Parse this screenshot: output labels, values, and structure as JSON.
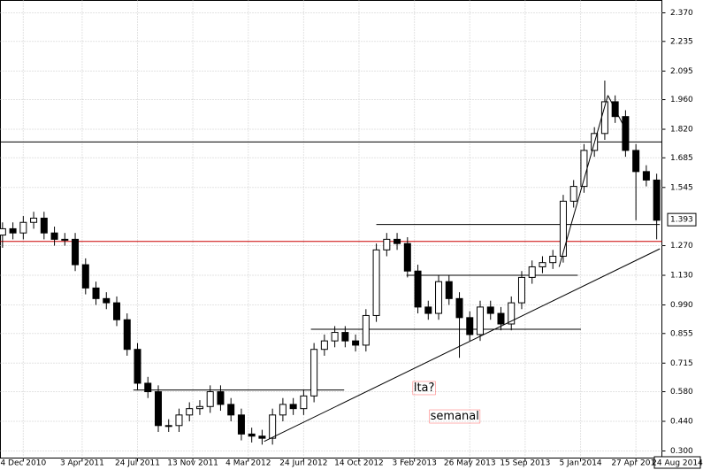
{
  "chart_data": {
    "type": "candlestick",
    "xlim": [
      -0.2,
      63.5
    ],
    "ylim": [
      0.2665,
      2.4286
    ],
    "grid": true,
    "up_color": "#ffffff",
    "down_color": "#000000",
    "xticks": [
      {
        "value": 2,
        "label": "4 Dec 2010"
      },
      {
        "value": 7.67,
        "label": "3 Apr 2011"
      },
      {
        "value": 13,
        "label": "24 Jul 2011"
      },
      {
        "value": 18.33,
        "label": "13 Nov 2011"
      },
      {
        "value": 23.67,
        "label": "4 Mar 2012"
      },
      {
        "value": 29,
        "label": "24 Jun 2012"
      },
      {
        "value": 34.33,
        "label": "14 Oct 2012"
      },
      {
        "value": 39.67,
        "label": "3 Feb 2013"
      },
      {
        "value": 45,
        "label": "26 May 2013"
      },
      {
        "value": 50.33,
        "label": "15 Sep 2013"
      },
      {
        "value": 55.67,
        "label": "5 Jan 2014"
      },
      {
        "value": 61,
        "label": "27 Apr 2014"
      }
    ],
    "last_date": "24 Aug 2014",
    "yticks": [
      {
        "value": 0.3,
        "label": "0.300"
      },
      {
        "value": 0.44,
        "label": "0.440"
      },
      {
        "value": 0.58,
        "label": "0.580"
      },
      {
        "value": 0.715,
        "label": "0.715"
      },
      {
        "value": 0.855,
        "label": "0.855"
      },
      {
        "value": 0.99,
        "label": "0.990"
      },
      {
        "value": 1.13,
        "label": "1.130"
      },
      {
        "value": 1.27,
        "label": "1.270"
      },
      {
        "value": 1.545,
        "label": "1.545"
      },
      {
        "value": 1.685,
        "label": "1.685"
      },
      {
        "value": 1.82,
        "label": "1.820"
      },
      {
        "value": 1.96,
        "label": "1.960"
      },
      {
        "value": 2.095,
        "label": "2.095"
      },
      {
        "value": 2.235,
        "label": "2.235"
      },
      {
        "value": 2.37,
        "label": "2.370"
      }
    ],
    "last_price": {
      "value": 1.393,
      "label": "1.393"
    },
    "open": [
      1.32,
      1.35,
      1.33,
      1.38,
      1.4,
      1.33,
      1.3,
      1.3,
      1.18,
      1.07,
      1.02,
      1.0,
      0.92,
      0.78,
      0.62,
      0.58,
      0.42,
      0.42,
      0.47,
      0.5,
      0.51,
      0.58,
      0.52,
      0.47,
      0.38,
      0.37,
      0.36,
      0.47,
      0.52,
      0.5,
      0.56,
      0.78,
      0.82,
      0.86,
      0.82,
      0.8,
      0.94,
      1.25,
      1.3,
      1.28,
      1.15,
      0.98,
      0.95,
      1.1,
      1.02,
      0.93,
      0.85,
      0.98,
      0.95,
      0.9,
      1.0,
      1.12,
      1.17,
      1.19,
      1.22,
      1.48,
      1.55,
      1.72,
      1.8,
      1.95,
      1.88,
      1.72,
      1.62,
      1.58
    ],
    "high": [
      1.38,
      1.38,
      1.41,
      1.43,
      1.43,
      1.36,
      1.33,
      1.33,
      1.21,
      1.1,
      1.05,
      1.03,
      0.95,
      0.81,
      0.65,
      0.61,
      0.45,
      0.5,
      0.53,
      0.54,
      0.61,
      0.61,
      0.55,
      0.5,
      0.41,
      0.4,
      0.5,
      0.55,
      0.55,
      0.59,
      0.81,
      0.85,
      0.89,
      0.89,
      0.85,
      0.97,
      1.28,
      1.33,
      1.33,
      1.31,
      1.18,
      1.01,
      1.13,
      1.13,
      1.05,
      0.96,
      1.01,
      1.01,
      0.98,
      1.03,
      1.15,
      1.2,
      1.22,
      1.25,
      1.51,
      1.58,
      1.75,
      1.83,
      2.05,
      1.98,
      1.91,
      1.75,
      1.65,
      1.61
    ],
    "low": [
      1.26,
      1.3,
      1.3,
      1.35,
      1.3,
      1.27,
      1.27,
      1.15,
      1.04,
      0.99,
      0.97,
      0.89,
      0.75,
      0.59,
      0.55,
      0.39,
      0.39,
      0.39,
      0.44,
      0.47,
      0.48,
      0.49,
      0.44,
      0.35,
      0.34,
      0.33,
      0.33,
      0.44,
      0.47,
      0.47,
      0.53,
      0.75,
      0.79,
      0.79,
      0.77,
      0.77,
      0.91,
      1.22,
      1.25,
      1.12,
      0.95,
      0.92,
      0.92,
      0.99,
      0.74,
      0.82,
      0.82,
      0.92,
      0.87,
      0.87,
      0.97,
      1.09,
      1.14,
      1.16,
      1.19,
      1.45,
      1.52,
      1.69,
      1.77,
      1.85,
      1.69,
      1.39,
      1.55,
      1.3
    ],
    "close": [
      1.35,
      1.33,
      1.38,
      1.4,
      1.33,
      1.3,
      1.3,
      1.18,
      1.07,
      1.02,
      1.0,
      0.92,
      0.78,
      0.62,
      0.58,
      0.42,
      0.42,
      0.47,
      0.5,
      0.51,
      0.58,
      0.52,
      0.47,
      0.38,
      0.37,
      0.36,
      0.47,
      0.52,
      0.5,
      0.56,
      0.78,
      0.82,
      0.86,
      0.82,
      0.8,
      0.94,
      1.25,
      1.3,
      1.28,
      1.15,
      0.98,
      0.95,
      1.1,
      1.02,
      0.93,
      0.85,
      0.98,
      0.95,
      0.9,
      1.0,
      1.12,
      1.17,
      1.19,
      1.22,
      1.48,
      1.55,
      1.72,
      1.8,
      1.95,
      1.88,
      1.72,
      1.62,
      1.58,
      1.39
    ],
    "levels": [
      {
        "value": 1.76,
        "color": "#000000"
      },
      {
        "value": 1.29,
        "color": "#cc0000"
      }
    ],
    "segments": [
      {
        "value": 0.588,
        "from": 12.6,
        "to": 32.9
      },
      {
        "value": 0.875,
        "from": 29.7,
        "to": 55.7
      },
      {
        "value": 1.13,
        "from": 38.9,
        "to": 55.4
      },
      {
        "value": 1.37,
        "from": 36.0,
        "to": 63.3
      }
    ],
    "trendlines": [
      {
        "x": [
          25.2,
          63.3
        ],
        "y": [
          0.345,
          1.255
        ]
      },
      {
        "x": [
          53.6,
          58.3
        ],
        "y": [
          1.17,
          1.98
        ]
      },
      {
        "x": [
          58.3,
          60.2
        ],
        "y": [
          1.98,
          1.8
        ]
      }
    ],
    "annotations": [
      {
        "text": "lta?",
        "x": 39.6,
        "y": 0.597,
        "color": "#ff0000"
      },
      {
        "text": "semanal",
        "x": 41.2,
        "y": 0.463,
        "color": "#ff0000"
      }
    ]
  }
}
